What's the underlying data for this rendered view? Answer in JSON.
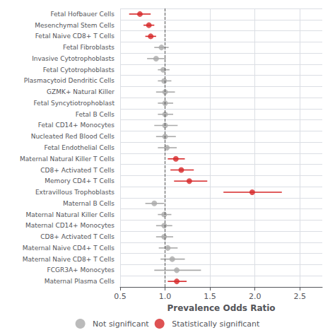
{
  "chart_data": {
    "type": "forest",
    "xlabel": "Prevalence Odds Ratio",
    "categories": [
      "Fetal Hofbauer Cells",
      "Mesenchymal Stem Cells",
      "Fetal Naive CD8+ T Cells",
      "Fetal Fibroblasts",
      "Invasive Cytotrophoblasts",
      "Fetal Cytotrophoblasts",
      "Plasmacytoid Dendritic Cells",
      "GZMK+ Natural Killer",
      "Fetal Syncytiotrophoblast",
      "Fetal B Cells",
      "Fetal CD14+ Monocytes",
      "Nucleated Red Blood Cells",
      "Fetal Endothelial Cells",
      "Maternal Natural Killer T Cells",
      "CD8+ Activated T Cells",
      "Memory CD4+ T Cells",
      "Extravillous Trophoblasts",
      "Maternal B Cells",
      "Maternal Natural Killer Cells",
      "Maternal CD14+ Monocytes",
      "CD8+ Activated T Cells",
      "Maternal Naive CD4+ T Cells",
      "Maternal Naive CD8+ T Cells",
      "FCGR3A+ Monocytes",
      "Maternal Plasma Cells"
    ],
    "series": [
      {
        "name": "Not significant",
        "color": "#aaaaaa",
        "values": [
          null,
          null,
          null,
          0.96,
          0.9,
          0.98,
          0.99,
          1.0,
          1.0,
          1.0,
          1.0,
          1.0,
          1.02,
          null,
          null,
          null,
          null,
          0.88,
          0.99,
          0.99,
          0.99,
          1.03,
          1.08,
          1.13,
          null
        ],
        "ci_low": [
          null,
          null,
          null,
          0.88,
          0.8,
          0.92,
          0.92,
          0.9,
          0.92,
          0.92,
          0.88,
          0.9,
          0.92,
          null,
          null,
          null,
          null,
          0.78,
          0.92,
          0.9,
          0.9,
          0.93,
          0.95,
          0.88,
          null
        ],
        "ci_high": [
          null,
          null,
          null,
          1.04,
          1.01,
          1.05,
          1.07,
          1.11,
          1.09,
          1.09,
          1.14,
          1.12,
          1.13,
          null,
          null,
          null,
          null,
          0.99,
          1.07,
          1.08,
          1.09,
          1.14,
          1.22,
          1.4,
          null
        ]
      },
      {
        "name": "Statistically significant",
        "color": "#d62728",
        "values": [
          0.72,
          0.82,
          0.84,
          null,
          null,
          null,
          null,
          null,
          null,
          null,
          null,
          null,
          null,
          1.12,
          1.18,
          1.27,
          1.97,
          null,
          null,
          null,
          null,
          null,
          null,
          null,
          1.13
        ],
        "ci_low": [
          0.6,
          0.76,
          0.78,
          null,
          null,
          null,
          null,
          null,
          null,
          null,
          null,
          null,
          null,
          1.03,
          1.06,
          1.1,
          1.65,
          null,
          null,
          null,
          null,
          null,
          null,
          null,
          1.03
        ],
        "ci_high": [
          0.84,
          0.88,
          0.9,
          null,
          null,
          null,
          null,
          null,
          null,
          null,
          null,
          null,
          null,
          1.22,
          1.32,
          1.47,
          2.3,
          null,
          null,
          null,
          null,
          null,
          null,
          null,
          1.24
        ]
      }
    ],
    "reference_line": 1.0,
    "xlim": [
      0.5,
      2.75
    ],
    "xticks": [
      0.5,
      {
        "value": 1.0,
        "label": "1.0"
      },
      1.5,
      {
        "value": 2.0,
        "label": "2.0"
      },
      2.5
    ],
    "grid": true,
    "legend": "bottom"
  }
}
